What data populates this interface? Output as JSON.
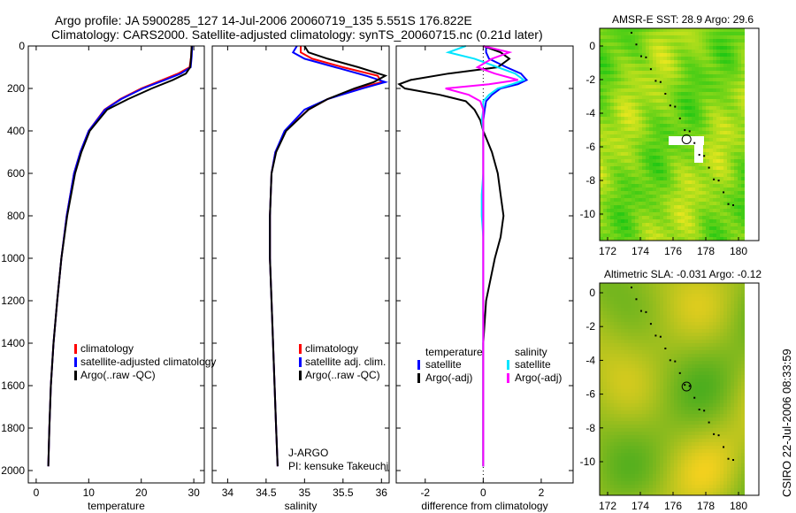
{
  "title_line1": "Argo profile: JA 5900285_127 14-Jul-2006 20060719_135 5.551S 176.822E",
  "title_line2": "Climatology: CARS2000. Satellite-adjusted climatology: synTS_20060715.nc (0.21d later)",
  "side_label": "CSIRO 22-Jul-2006 08:33:59",
  "colors": {
    "climatology": "#ff0000",
    "satellite": "#0000ff",
    "argo": "#000000",
    "sal_sat": "#00e5ff",
    "sal_argo": "#ff00ff"
  },
  "chart_data": [
    {
      "type": "line",
      "xlabel": "temperature",
      "ylabel": "",
      "xlim": [
        -1.5,
        32
      ],
      "ylim": [
        2000,
        0
      ],
      "xticks": [
        "0",
        "10",
        "20",
        "30"
      ],
      "xtickvals": [
        0,
        10,
        20,
        30
      ],
      "yticks": [
        "0",
        "200",
        "400",
        "600",
        "800",
        "1000",
        "1200",
        "1400",
        "1600",
        "1800",
        "2000"
      ],
      "legend": [
        "climatology",
        "satellite-adjusted climatology",
        "Argo(..raw -QC)"
      ],
      "depth": [
        0,
        50,
        100,
        130,
        160,
        200,
        250,
        300,
        400,
        500,
        600,
        800,
        1000,
        1200,
        1400,
        1600,
        1800,
        1980
      ],
      "series": [
        {
          "name": "climatology",
          "color": "#ff0000",
          "values": [
            29.6,
            29.5,
            29.2,
            27,
            24,
            20,
            16,
            13,
            10,
            8.4,
            7.2,
            5.8,
            4.8,
            4,
            3.3,
            2.8,
            2.5,
            2.3
          ]
        },
        {
          "name": "satellite-adjusted climatology",
          "color": "#0000ff",
          "values": [
            29.7,
            29.6,
            29.4,
            27.5,
            24.5,
            20.3,
            16.2,
            13.1,
            10,
            8.4,
            7.2,
            5.8,
            4.8,
            4,
            3.3,
            2.8,
            2.5,
            2.3
          ]
        },
        {
          "name": "Argo(..raw -QC)",
          "color": "#000000",
          "values": [
            29.6,
            29.5,
            29.3,
            28.5,
            26,
            22,
            17.5,
            13.5,
            10.2,
            8.6,
            7.4,
            5.9,
            4.8,
            4,
            3.3,
            2.8,
            2.5,
            2.3
          ]
        }
      ]
    },
    {
      "type": "line",
      "xlabel": "salinity",
      "xlim": [
        33.8,
        36.1
      ],
      "ylim": [
        2000,
        0
      ],
      "xticks": [
        "34",
        "34.5",
        "35",
        "35.5",
        "36"
      ],
      "xtickvals": [
        34,
        34.5,
        35,
        35.5,
        36
      ],
      "legend": [
        "climatology",
        "satellite adj. clim.",
        "Argo(..raw -QC)"
      ],
      "annotation": [
        "J-ARGO",
        "PI: kensuke Takeuchi"
      ],
      "depth": [
        0,
        30,
        60,
        100,
        140,
        170,
        200,
        250,
        300,
        400,
        500,
        600,
        800,
        1000,
        1200,
        1500,
        1800,
        1980
      ],
      "series": [
        {
          "name": "climatology",
          "color": "#ff0000",
          "values": [
            34.95,
            34.95,
            35.1,
            35.5,
            35.95,
            36.0,
            35.7,
            35.3,
            35.05,
            34.75,
            34.62,
            34.57,
            34.55,
            34.55,
            34.57,
            34.6,
            34.63,
            34.65
          ]
        },
        {
          "name": "satellite adj. clim.",
          "color": "#0000ff",
          "values": [
            34.9,
            34.85,
            35.0,
            35.4,
            35.8,
            36.05,
            35.75,
            35.3,
            35.0,
            34.74,
            34.62,
            34.57,
            34.55,
            34.55,
            34.57,
            34.6,
            34.63,
            34.65
          ]
        },
        {
          "name": "Argo(..raw -QC)",
          "color": "#000000",
          "values": [
            35.0,
            35.05,
            35.3,
            35.7,
            36.05,
            35.9,
            35.65,
            35.3,
            35.05,
            34.76,
            34.63,
            34.57,
            34.55,
            34.55,
            34.57,
            34.6,
            34.63,
            34.65
          ]
        }
      ]
    },
    {
      "type": "line",
      "xlabel": "difference from climatology",
      "xlim": [
        -3,
        3.1
      ],
      "ylim": [
        2000,
        0
      ],
      "xticks": [
        "-2",
        "0",
        "2"
      ],
      "xtickvals": [
        -2,
        0,
        2
      ],
      "legend_headers": [
        "temperature",
        "salinity"
      ],
      "legend": [
        "satellite",
        "Argo(-adj)",
        "satellite",
        "Argo(-adj)"
      ],
      "depth": [
        0,
        30,
        60,
        100,
        130,
        160,
        180,
        200,
        230,
        260,
        300,
        350,
        400,
        500,
        600,
        700,
        800,
        900,
        1000,
        1200,
        1400,
        1600,
        1800,
        1980
      ],
      "series": [
        {
          "name": "temperature satellite",
          "color": "#0000ff",
          "values": [
            0.1,
            0.1,
            0.2,
            0.8,
            1.3,
            1.5,
            1.2,
            0.6,
            0.3,
            0.1,
            0.05,
            0,
            0,
            0,
            0,
            0,
            0,
            0,
            0,
            0,
            0,
            0,
            0,
            0
          ]
        },
        {
          "name": "temperature Argo(-adj)",
          "color": "#000000",
          "values": [
            0,
            0.6,
            0.9,
            0.5,
            -1.2,
            -2.5,
            -2.9,
            -2.7,
            -1.5,
            -0.6,
            -0.3,
            -0.1,
            0,
            0.3,
            0.5,
            0.6,
            0.7,
            0.6,
            0.4,
            0.1,
            0,
            0,
            0,
            0
          ]
        },
        {
          "name": "salinity satellite",
          "color": "#00e5ff",
          "values": [
            -0.6,
            -1.2,
            -0.3,
            0.5,
            1.1,
            1.4,
            1.0,
            0.5,
            0.2,
            0,
            0,
            -0.05,
            0,
            0,
            0,
            -0.05,
            -0.05,
            0,
            0,
            0,
            0,
            0,
            0,
            0
          ]
        },
        {
          "name": "salinity Argo(-adj)",
          "color": "#ff00ff",
          "values": [
            0,
            0.9,
            0.3,
            -0.2,
            0.4,
            1.2,
            0.2,
            -1.3,
            -0.5,
            -0.1,
            0,
            0,
            0,
            0,
            0,
            0,
            0,
            0,
            0,
            0,
            0,
            0,
            0,
            0
          ]
        }
      ]
    }
  ],
  "maps": [
    {
      "title": "AMSR-E SST: 28.9 Argo: 29.6",
      "xticks": [
        "172",
        "174",
        "176",
        "178",
        "180"
      ],
      "yticks": [
        "0",
        "-2",
        "-4",
        "-6",
        "-8",
        "-10"
      ],
      "float_lon": 176.822,
      "float_lat": -5.551
    },
    {
      "title": "Altimetric SLA: -0.031 Argo: -0.12",
      "xticks": [
        "172",
        "174",
        "176",
        "178",
        "180"
      ],
      "yticks": [
        "0",
        "-2",
        "-4",
        "-6",
        "-8",
        "-10"
      ],
      "float_lon": 176.822,
      "float_lat": -5.551
    }
  ]
}
